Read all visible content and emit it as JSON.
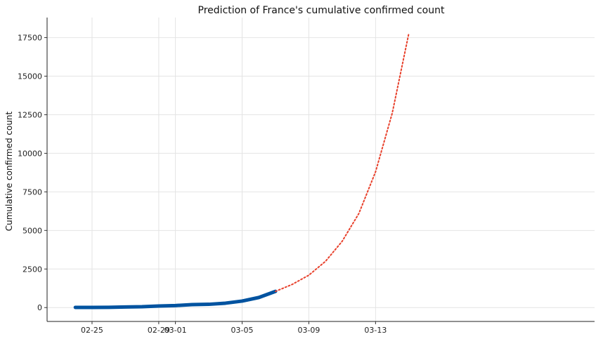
{
  "chart_data": {
    "type": "line",
    "title": "Prediction of France's cumulative confirmed count",
    "xlabel": "",
    "ylabel": "Cumulative confirmed count",
    "x_tick_labels": [
      "02-25",
      "02-29",
      "03-01",
      "03-05",
      "03-09",
      "03-13"
    ],
    "y_tick_labels": [
      "0",
      "2500",
      "5000",
      "7500",
      "10000",
      "12500",
      "15000",
      "17500"
    ],
    "ylim": [
      -900,
      18800
    ],
    "xlim": [
      "2020-02-23",
      "2020-03-16"
    ],
    "grid": true,
    "legend": "none",
    "series": [
      {
        "style": "solid",
        "color": "#0053a0",
        "x": [
          "2020-02-24",
          "2020-02-25",
          "2020-02-26",
          "2020-02-27",
          "2020-02-28",
          "2020-02-29",
          "2020-03-01",
          "2020-03-02",
          "2020-03-03",
          "2020-03-04",
          "2020-03-05",
          "2020-03-06",
          "2020-03-07"
        ],
        "y": [
          12,
          12,
          17,
          38,
          57,
          100,
          130,
          191,
          212,
          285,
          423,
          653,
          1050
        ]
      },
      {
        "style": "dotted",
        "color": "#e8412c",
        "x": [
          "2020-03-07",
          "2020-03-08",
          "2020-03-09",
          "2020-03-10",
          "2020-03-11",
          "2020-03-12",
          "2020-03-13",
          "2020-03-14",
          "2020-03-15"
        ],
        "y": [
          1050,
          1500,
          2100,
          3000,
          4300,
          6100,
          8800,
          12600,
          17800
        ]
      }
    ]
  }
}
